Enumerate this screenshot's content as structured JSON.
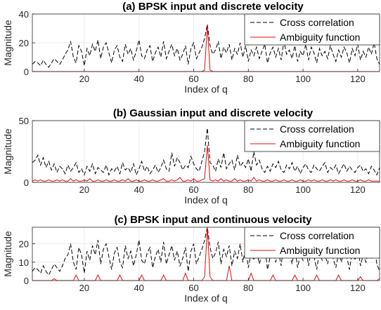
{
  "chart_data": [
    {
      "type": "line",
      "title": "(a) BPSK input and discrete velocity",
      "xlabel": "Index of q",
      "ylabel": "Magnitude",
      "xlim": [
        1,
        128
      ],
      "ylim": [
        0,
        40
      ],
      "xticks": [
        20,
        40,
        60,
        80,
        100,
        120
      ],
      "yticks": [
        0,
        20,
        40
      ],
      "grid": true,
      "legend_position": "top-right",
      "series": [
        {
          "name": "Cross correlation",
          "color": "#000000",
          "style": "dashed",
          "y": [
            5,
            7,
            6,
            4,
            8,
            5,
            3,
            6,
            9,
            7,
            5,
            8,
            12,
            15,
            21,
            10,
            6,
            18,
            14,
            4,
            16,
            11,
            19,
            14,
            22,
            9,
            17,
            20,
            13,
            6,
            15,
            18,
            10,
            7,
            19,
            12,
            16,
            8,
            14,
            22,
            11,
            9,
            15,
            18,
            7,
            13,
            17,
            10,
            21,
            9,
            14,
            19,
            11,
            16,
            8,
            12,
            18,
            5,
            16,
            20,
            9,
            13,
            17,
            23,
            33,
            18,
            12,
            15,
            21,
            9,
            17,
            13,
            19,
            8,
            16,
            12,
            20,
            10,
            18,
            7,
            15,
            11,
            17,
            9,
            14,
            19,
            6,
            13,
            17,
            10,
            16,
            8,
            21,
            12,
            15,
            9,
            18,
            7,
            14,
            11,
            19,
            8,
            17,
            13,
            6,
            16,
            11,
            14,
            9,
            18,
            12,
            7,
            15,
            10,
            17,
            13,
            6,
            16,
            11,
            19,
            8,
            14,
            10,
            17,
            12,
            20,
            9,
            5
          ]
        },
        {
          "name": "Ambiguity function",
          "color": "#e8080a",
          "style": "solid",
          "y": [
            0,
            0,
            0,
            0,
            0,
            0,
            0,
            0,
            0,
            0,
            0,
            0,
            0,
            0,
            0,
            0,
            0,
            0,
            0,
            0,
            0,
            0,
            0,
            0,
            0,
            0,
            0,
            0,
            0,
            0,
            0,
            0,
            0,
            0,
            0,
            0,
            0,
            0,
            0,
            0,
            0,
            0,
            0,
            0,
            0,
            0,
            0,
            0,
            0,
            0,
            0,
            0,
            0,
            0,
            0,
            0,
            0,
            0,
            0,
            0,
            0,
            0,
            0,
            1,
            32,
            1,
            0,
            0,
            0,
            0,
            0,
            0,
            0,
            0,
            0,
            0,
            0,
            0,
            0,
            0,
            0,
            0,
            0,
            0,
            0,
            0,
            0,
            0,
            0,
            0,
            0,
            0,
            0,
            0,
            0,
            0,
            0,
            0,
            0,
            0,
            0,
            0,
            0,
            0,
            0,
            0,
            0,
            0,
            0,
            0,
            0,
            0,
            0,
            0,
            0,
            0,
            0,
            0,
            0,
            0,
            0,
            0,
            0,
            0,
            0,
            0,
            0,
            0
          ]
        }
      ]
    },
    {
      "type": "line",
      "title": "(b) Gaussian input and discrete velocity",
      "xlabel": "Index of q",
      "ylabel": "Magnitude",
      "xlim": [
        1,
        128
      ],
      "ylim": [
        0,
        50
      ],
      "xticks": [
        20,
        40,
        60,
        80,
        100,
        120
      ],
      "yticks": [
        0,
        50
      ],
      "grid": true,
      "legend_position": "top-right",
      "series": [
        {
          "name": "Cross correlation",
          "color": "#000000",
          "style": "dashed",
          "y": [
            16,
            18,
            22,
            14,
            20,
            12,
            17,
            10,
            15,
            8,
            13,
            11,
            7,
            14,
            9,
            12,
            16,
            8,
            11,
            6,
            13,
            9,
            15,
            7,
            12,
            10,
            8,
            14,
            6,
            11,
            9,
            13,
            7,
            16,
            10,
            12,
            8,
            15,
            6,
            11,
            17,
            9,
            13,
            7,
            10,
            14,
            8,
            12,
            18,
            11,
            9,
            24,
            13,
            20,
            16,
            10,
            14,
            12,
            21,
            15,
            11,
            9,
            17,
            25,
            44,
            16,
            14,
            9,
            19,
            12,
            24,
            11,
            15,
            18,
            10,
            22,
            13,
            16,
            12,
            19,
            9,
            25,
            14,
            18,
            11,
            8,
            13,
            9,
            15,
            12,
            17,
            10,
            8,
            14,
            11,
            16,
            9,
            13,
            7,
            12,
            15,
            10,
            8,
            14,
            11,
            9,
            13,
            16,
            8,
            12,
            10,
            14,
            7,
            11,
            15,
            9,
            13,
            10,
            8,
            12,
            14,
            9,
            11,
            7,
            13,
            10,
            6,
            12
          ]
        },
        {
          "name": "Ambiguity function",
          "color": "#e8080a",
          "style": "solid",
          "y": [
            1,
            2,
            1,
            2,
            1,
            1,
            2,
            1,
            1,
            2,
            1,
            2,
            1,
            1,
            3,
            1,
            2,
            1,
            1,
            2,
            1,
            3,
            1,
            1,
            2,
            1,
            1,
            2,
            1,
            1,
            2,
            1,
            1,
            2,
            1,
            3,
            1,
            1,
            2,
            1,
            1,
            2,
            1,
            1,
            2,
            1,
            1,
            2,
            3,
            1,
            1,
            2,
            1,
            2,
            4,
            1,
            1,
            2,
            1,
            3,
            1,
            1,
            2,
            3,
            30,
            2,
            1,
            2,
            1,
            3,
            1,
            2,
            1,
            1,
            3,
            1,
            2,
            1,
            1,
            2,
            1,
            4,
            1,
            2,
            1,
            1,
            2,
            1,
            1,
            2,
            1,
            1,
            2,
            1,
            1,
            2,
            1,
            1,
            2,
            1,
            1,
            2,
            1,
            2,
            1,
            1,
            2,
            1,
            1,
            2,
            1,
            2,
            1,
            1,
            2,
            1,
            1,
            2,
            1,
            1,
            2,
            1,
            1,
            2,
            1,
            1,
            1,
            1
          ]
        }
      ]
    },
    {
      "type": "line",
      "title": "(c) BPSK input and continuous velocity",
      "xlabel": "Index of q",
      "ylabel": "Magnitude",
      "xlim": [
        1,
        128
      ],
      "ylim": [
        0,
        29
      ],
      "xticks": [
        20,
        40,
        60,
        80,
        100,
        120
      ],
      "yticks": [
        0,
        10,
        20
      ],
      "grid": true,
      "legend_position": "top-right",
      "series": [
        {
          "name": "Cross correlation",
          "color": "#000000",
          "style": "dashed",
          "y": [
            5,
            7,
            6,
            4,
            8,
            5,
            3,
            6,
            9,
            7,
            5,
            8,
            12,
            14,
            20,
            10,
            6,
            18,
            14,
            4,
            16,
            11,
            19,
            14,
            22,
            9,
            17,
            20,
            13,
            6,
            15,
            18,
            10,
            7,
            19,
            12,
            16,
            8,
            14,
            22,
            11,
            9,
            15,
            18,
            7,
            13,
            17,
            10,
            21,
            9,
            14,
            19,
            11,
            16,
            8,
            12,
            18,
            5,
            16,
            20,
            9,
            13,
            17,
            22,
            29,
            18,
            12,
            15,
            21,
            9,
            17,
            13,
            19,
            8,
            16,
            12,
            20,
            10,
            18,
            7,
            15,
            11,
            17,
            9,
            14,
            19,
            6,
            13,
            17,
            10,
            16,
            8,
            21,
            12,
            15,
            9,
            18,
            7,
            14,
            11,
            19,
            8,
            17,
            13,
            6,
            16,
            11,
            14,
            9,
            18,
            12,
            7,
            15,
            10,
            17,
            13,
            6,
            16,
            11,
            19,
            8,
            14,
            10,
            17,
            12,
            20,
            9,
            5
          ]
        },
        {
          "name": "Ambiguity function",
          "color": "#e8080a",
          "style": "solid",
          "y": [
            0,
            0,
            0,
            0,
            0,
            0,
            0,
            0,
            1,
            0,
            0,
            0,
            0,
            0,
            0,
            0,
            3,
            0,
            0,
            0,
            0,
            0,
            0,
            0,
            3,
            0,
            0,
            0,
            0,
            0,
            0,
            0,
            3,
            0,
            0,
            0,
            0,
            0,
            0,
            0,
            3,
            0,
            0,
            0,
            0,
            0,
            0,
            0,
            3,
            0,
            0,
            0,
            0,
            0,
            0,
            0,
            4,
            0,
            0,
            0,
            0,
            0,
            0,
            2,
            29,
            2,
            0,
            0,
            0,
            0,
            0,
            0,
            8,
            0,
            0,
            0,
            0,
            0,
            0,
            0,
            4,
            0,
            0,
            0,
            0,
            0,
            0,
            0,
            3,
            0,
            0,
            0,
            0,
            0,
            0,
            0,
            3,
            0,
            0,
            0,
            0,
            0,
            0,
            0,
            3,
            0,
            0,
            0,
            0,
            0,
            0,
            0,
            3,
            0,
            0,
            0,
            0,
            0,
            0,
            0,
            2,
            0,
            0,
            0,
            0,
            0,
            0,
            1
          ]
        }
      ]
    }
  ]
}
